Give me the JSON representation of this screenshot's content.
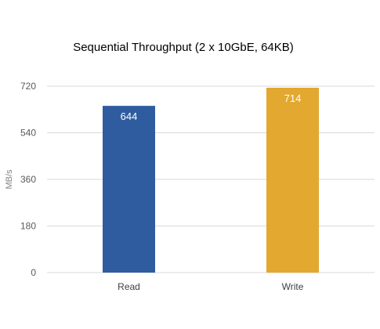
{
  "chart_data": {
    "type": "bar",
    "title": "Sequential Throughput (2 x 10GbE, 64KB)",
    "ylabel": "MB/s",
    "categories": [
      "Read",
      "Write"
    ],
    "values": [
      644,
      714
    ],
    "data_labels": [
      "644",
      "714"
    ],
    "colors": [
      "#2e5c9e",
      "#e2a830"
    ],
    "ylim": [
      0,
      720
    ],
    "yticks": [
      0,
      180,
      360,
      540,
      720
    ],
    "grid": true,
    "legend": "none"
  }
}
